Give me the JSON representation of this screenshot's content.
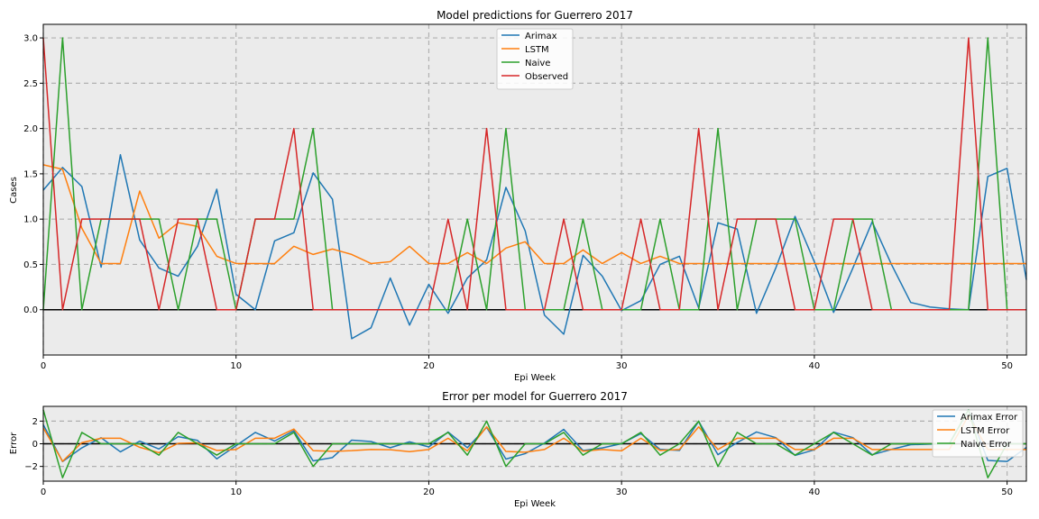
{
  "colors": {
    "arimax": "#1f77b4",
    "lstm": "#ff7f0e",
    "naive": "#2ca02c",
    "observed": "#d62728",
    "plot_bg": "#ebebeb",
    "grid": "#b0b0b0"
  },
  "chart_data": [
    {
      "type": "line",
      "title": "Model predictions for Guerrero 2017",
      "xlabel": "Epi Week",
      "ylabel": "Cases",
      "xlim": [
        0,
        51
      ],
      "ylim": [
        -0.5,
        3.15
      ],
      "xticks": [
        0,
        10,
        20,
        30,
        40,
        50
      ],
      "yticks": [
        0.0,
        0.5,
        1.0,
        1.5,
        2.0,
        2.5,
        3.0
      ],
      "ytick_labels": [
        "0.0",
        "0.5",
        "1.0",
        "1.5",
        "2.0",
        "2.5",
        "3.0"
      ],
      "grid": true,
      "legend": "top-center",
      "series": [
        {
          "name": "Arimax",
          "color_key": "arimax",
          "values": [
            1.32,
            1.57,
            1.36,
            0.47,
            1.71,
            0.77,
            0.46,
            0.37,
            0.7,
            1.33,
            0.17,
            0.0,
            0.76,
            0.85,
            1.51,
            1.22,
            -0.32,
            -0.2,
            0.35,
            -0.17,
            0.28,
            -0.04,
            0.35,
            0.55,
            1.35,
            0.87,
            -0.06,
            -0.27,
            0.6,
            0.37,
            -0.01,
            0.1,
            0.5,
            0.59,
            0.02,
            0.96,
            0.89,
            -0.04,
            0.46,
            1.03,
            0.53,
            -0.03,
            0.46,
            0.97,
            0.5,
            0.08,
            0.03,
            0.01,
            0.0,
            1.47,
            1.56,
            0.33
          ]
        },
        {
          "name": "LSTM",
          "color_key": "lstm",
          "values": [
            1.6,
            1.55,
            0.9,
            0.51,
            0.51,
            1.31,
            0.79,
            0.96,
            0.92,
            0.59,
            0.51,
            0.51,
            0.51,
            0.7,
            0.61,
            0.67,
            0.61,
            0.51,
            0.53,
            0.7,
            0.51,
            0.51,
            0.63,
            0.51,
            0.68,
            0.75,
            0.51,
            0.51,
            0.66,
            0.51,
            0.63,
            0.51,
            0.59,
            0.51,
            0.51,
            0.51,
            0.51,
            0.51,
            0.51,
            0.51,
            0.51,
            0.51,
            0.51,
            0.51,
            0.51,
            0.51,
            0.51,
            0.51,
            0.51,
            0.51,
            0.51,
            0.51
          ]
        },
        {
          "name": "Naive",
          "color_key": "naive",
          "values": [
            0,
            3,
            0,
            1,
            1,
            1,
            1,
            0,
            1,
            1,
            0,
            1,
            1,
            1,
            2,
            0,
            0,
            0,
            0,
            0,
            0,
            0,
            1,
            0,
            2,
            0,
            0,
            0,
            1,
            0,
            0,
            0,
            1,
            0,
            0,
            2,
            0,
            1,
            1,
            1,
            0,
            0,
            1,
            1,
            0,
            0,
            0,
            0,
            0,
            3,
            0,
            0
          ]
        },
        {
          "name": "Observed",
          "color_key": "observed",
          "values": [
            3,
            0,
            1,
            1,
            1,
            1,
            0,
            1,
            1,
            0,
            0,
            1,
            1,
            2,
            0,
            0,
            0,
            0,
            0,
            0,
            0,
            1,
            0,
            2,
            0,
            0,
            0,
            1,
            0,
            0,
            0,
            1,
            0,
            0,
            2,
            0,
            1,
            1,
            1,
            0,
            0,
            1,
            1,
            0,
            0,
            0,
            0,
            0,
            3,
            0,
            0,
            0
          ]
        }
      ]
    },
    {
      "type": "line",
      "title": "Error per model for Guerrero 2017",
      "xlabel": "Epi Week",
      "ylabel": "Error",
      "xlim": [
        0,
        51
      ],
      "ylim": [
        -3.3,
        3.3
      ],
      "xticks": [
        0,
        10,
        20,
        30,
        40,
        50
      ],
      "yticks": [
        -2,
        0,
        2
      ],
      "ytick_labels": [
        "−2",
        "0",
        "2"
      ],
      "grid": true,
      "legend": "top-right",
      "series": [
        {
          "name": "Arimax Error",
          "color_key": "arimax",
          "values": [
            1.68,
            -1.57,
            -0.36,
            0.53,
            -0.71,
            0.23,
            -0.46,
            0.63,
            0.3,
            -1.33,
            -0.17,
            1.0,
            0.24,
            1.15,
            -1.51,
            -1.22,
            0.32,
            0.2,
            -0.35,
            0.17,
            -0.28,
            1.04,
            -0.35,
            1.45,
            -1.35,
            -0.87,
            0.06,
            1.27,
            -0.6,
            -0.37,
            0.01,
            0.9,
            -0.5,
            -0.59,
            1.98,
            -0.96,
            0.11,
            1.04,
            0.54,
            -1.03,
            -0.53,
            1.03,
            0.54,
            -0.97,
            -0.5,
            -0.08,
            -0.03,
            -0.01,
            3.0,
            -1.47,
            -1.56,
            -0.33
          ]
        },
        {
          "name": "LSTM Error",
          "color_key": "lstm",
          "values": [
            1.4,
            -1.55,
            0.1,
            0.49,
            0.49,
            -0.31,
            -0.79,
            0.04,
            0.08,
            -0.59,
            -0.51,
            0.49,
            0.49,
            1.3,
            -0.61,
            -0.67,
            -0.61,
            -0.51,
            -0.53,
            -0.7,
            -0.51,
            0.49,
            -0.63,
            1.49,
            -0.68,
            -0.75,
            -0.51,
            0.49,
            -0.66,
            -0.51,
            -0.63,
            0.49,
            -0.59,
            -0.51,
            1.49,
            -0.51,
            0.49,
            0.49,
            0.49,
            -0.51,
            -0.51,
            0.49,
            0.49,
            -0.51,
            -0.51,
            -0.51,
            -0.51,
            -0.51,
            2.49,
            -0.51,
            -0.51,
            -0.51
          ]
        },
        {
          "name": "Naive Error",
          "color_key": "naive",
          "values": [
            3,
            -3,
            1,
            0,
            0,
            0,
            -1,
            1,
            0,
            -1,
            0,
            0,
            0,
            1,
            -2,
            0,
            0,
            0,
            0,
            0,
            0,
            1,
            -1,
            2,
            -2,
            0,
            0,
            1,
            -1,
            0,
            0,
            1,
            -1,
            0,
            2,
            -2,
            1,
            0,
            0,
            -1,
            0,
            1,
            0,
            -1,
            0,
            0,
            0,
            0,
            3,
            -3,
            0,
            0
          ]
        }
      ]
    }
  ]
}
